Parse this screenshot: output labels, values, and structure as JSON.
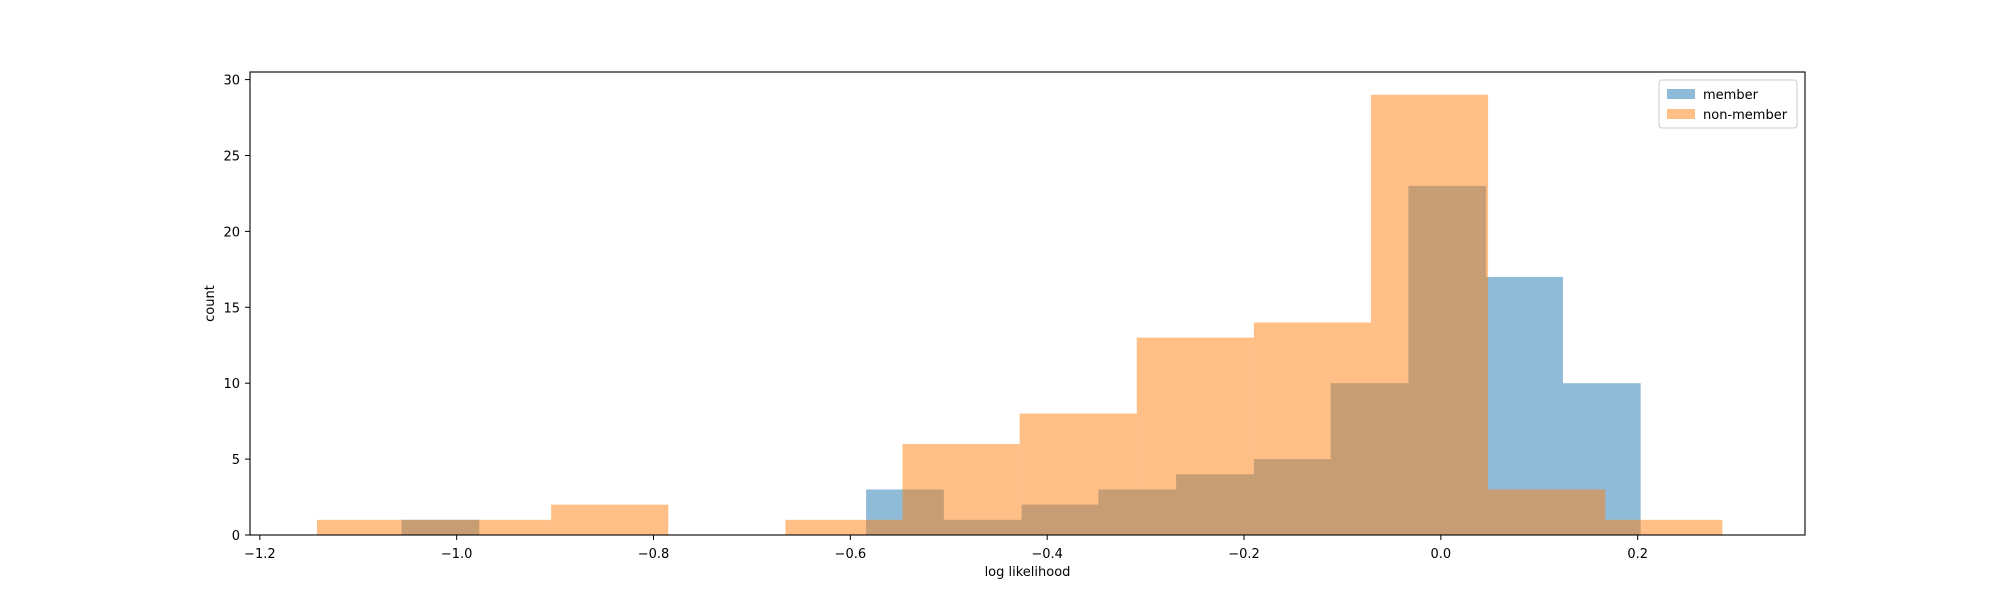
{
  "chart_data": {
    "type": "histogram",
    "title": "",
    "xlabel": "log likelihood",
    "ylabel": "count",
    "xlim": [
      -1.21,
      0.37
    ],
    "ylim": [
      0,
      30.5
    ],
    "x_ticks": [
      -1.2,
      -1.0,
      -0.8,
      -0.6,
      -0.4,
      -0.2,
      0.0,
      0.2
    ],
    "x_tick_labels": [
      "−1.2",
      "−1.0",
      "−0.8",
      "−0.6",
      "−0.4",
      "−0.2",
      "0.0",
      "0.2"
    ],
    "y_ticks": [
      0,
      5,
      10,
      15,
      20,
      25,
      30
    ],
    "y_tick_labels": [
      "0",
      "5",
      "10",
      "15",
      "20",
      "25",
      "30"
    ],
    "grid": false,
    "legend_position": "top-right",
    "series": [
      {
        "name": "member",
        "color": "#1f77b4",
        "alpha": 0.5,
        "bins": [
          {
            "x0": -1.056,
            "x1": -0.977,
            "count": 1
          },
          {
            "x0": -0.977,
            "x1": -0.898,
            "count": 0
          },
          {
            "x0": -0.898,
            "x1": -0.82,
            "count": 0
          },
          {
            "x0": -0.82,
            "x1": -0.741,
            "count": 0
          },
          {
            "x0": -0.741,
            "x1": -0.662,
            "count": 0
          },
          {
            "x0": -0.662,
            "x1": -0.584,
            "count": 0
          },
          {
            "x0": -0.584,
            "x1": -0.505,
            "count": 3
          },
          {
            "x0": -0.505,
            "x1": -0.426,
            "count": 1
          },
          {
            "x0": -0.426,
            "x1": -0.348,
            "count": 2
          },
          {
            "x0": -0.348,
            "x1": -0.269,
            "count": 3
          },
          {
            "x0": -0.269,
            "x1": -0.19,
            "count": 4
          },
          {
            "x0": -0.19,
            "x1": -0.112,
            "count": 5
          },
          {
            "x0": -0.112,
            "x1": -0.033,
            "count": 10
          },
          {
            "x0": -0.033,
            "x1": 0.046,
            "count": 23
          },
          {
            "x0": 0.046,
            "x1": 0.124,
            "count": 17
          },
          {
            "x0": 0.124,
            "x1": 0.203,
            "count": 10
          }
        ]
      },
      {
        "name": "non-member",
        "color": "#ff7f0e",
        "alpha": 0.5,
        "bins": [
          {
            "x0": -1.142,
            "x1": -1.023,
            "count": 1
          },
          {
            "x0": -1.023,
            "x1": -0.904,
            "count": 1
          },
          {
            "x0": -0.904,
            "x1": -0.785,
            "count": 2
          },
          {
            "x0": -0.785,
            "x1": -0.666,
            "count": 0
          },
          {
            "x0": -0.666,
            "x1": -0.547,
            "count": 1
          },
          {
            "x0": -0.547,
            "x1": -0.428,
            "count": 6
          },
          {
            "x0": -0.428,
            "x1": -0.309,
            "count": 8
          },
          {
            "x0": -0.309,
            "x1": -0.19,
            "count": 13
          },
          {
            "x0": -0.19,
            "x1": -0.071,
            "count": 14
          },
          {
            "x0": -0.071,
            "x1": 0.048,
            "count": 29
          },
          {
            "x0": 0.048,
            "x1": 0.167,
            "count": 3
          },
          {
            "x0": 0.167,
            "x1": 0.286,
            "count": 1
          }
        ]
      }
    ]
  }
}
